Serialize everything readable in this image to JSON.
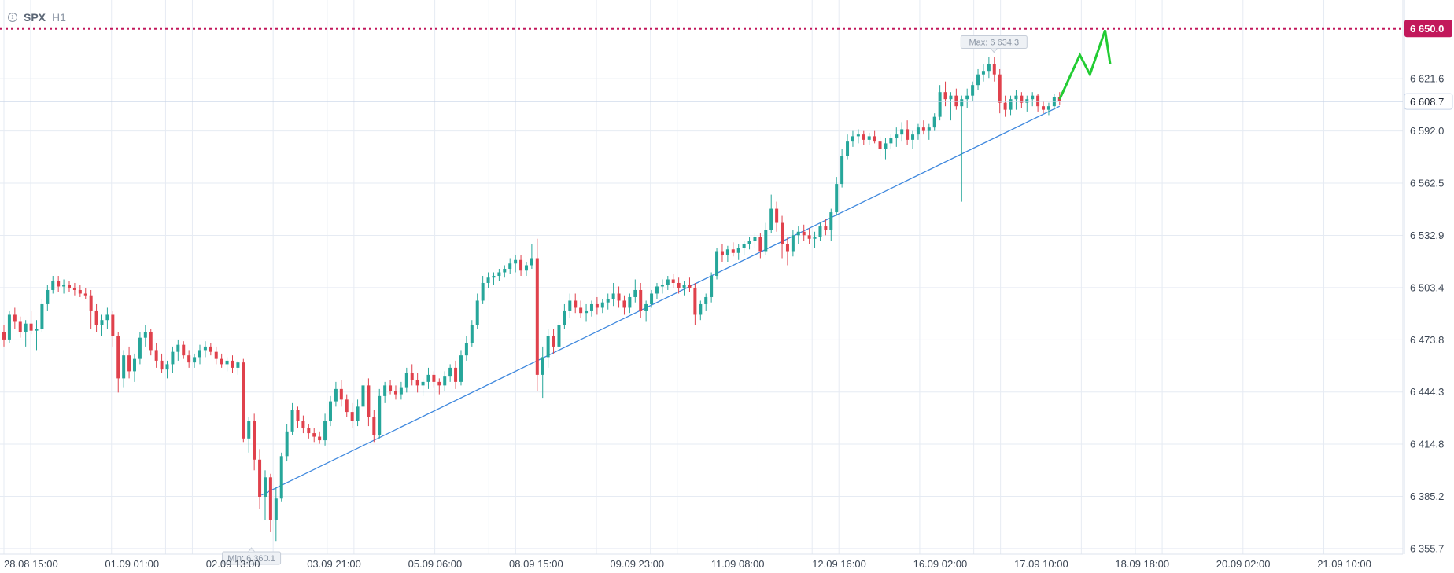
{
  "header": {
    "info_icon": "info-icon",
    "symbol": "SPX",
    "timeframe": "H1"
  },
  "colors": {
    "up": "#26a69a",
    "down": "#e0414c",
    "grid": "#e6ebf3",
    "resistance": "#c2185b",
    "trendline": "#3f88de",
    "forecast": "#22cc33",
    "current_line": "#c8d4e6"
  },
  "chart_data": {
    "type": "candlestick",
    "symbol": "SPX",
    "timeframe": "H1",
    "y_ticks": [
      "6 621.6",
      "6 592.0",
      "6 562.5",
      "6 532.9",
      "6 503.4",
      "6 473.8",
      "6 444.3",
      "6 414.8",
      "6 385.2",
      "6 355.7"
    ],
    "y_tick_values": [
      6621.6,
      6592.0,
      6562.5,
      6532.9,
      6503.4,
      6473.8,
      6444.3,
      6414.8,
      6385.2,
      6355.7
    ],
    "ylim": [
      6351.2,
      6651.0
    ],
    "x_ticks": [
      "28.08 15:00",
      "01.09 01:00",
      "02.09 13:00",
      "03.09 21:00",
      "05.09 06:00",
      "08.09 15:00",
      "09.09 23:00",
      "11.09 08:00",
      "12.09 16:00",
      "16.09 02:00",
      "17.09 10:00",
      "18.09 18:00",
      "20.09 02:00",
      "21.09 10:00"
    ],
    "x_range_hours": [
      0,
      282
    ],
    "resistance": {
      "value": 6650.0,
      "label": "6 650.0"
    },
    "current": {
      "value": 6608.7,
      "label": "6 608.7"
    },
    "max_label": "Max: 6 634.3",
    "min_label": "Min: 6 360.1",
    "max_point": {
      "hour": 196,
      "value": 6634.3
    },
    "min_point": {
      "hour": 49,
      "value": 6360.1
    },
    "trendline": [
      {
        "hour": 51,
        "value": 6386.0
      },
      {
        "hour": 209,
        "value": 6606.0
      }
    ],
    "forecast_path": [
      {
        "hour": 209,
        "value": 6610.0
      },
      {
        "hour": 213,
        "value": 6635.0
      },
      {
        "hour": 215,
        "value": 6624.0
      },
      {
        "hour": 218,
        "value": 6649.0
      },
      {
        "hour": 219,
        "value": 6630.0
      }
    ],
    "ohlc": [
      [
        6478,
        6482,
        6470,
        6474
      ],
      [
        6474,
        6490,
        6472,
        6488
      ],
      [
        6488,
        6492,
        6480,
        6484
      ],
      [
        6484,
        6487,
        6475,
        6478
      ],
      [
        6478,
        6485,
        6470,
        6483
      ],
      [
        6483,
        6490,
        6477,
        6479
      ],
      [
        6479,
        6485,
        6468,
        6480
      ],
      [
        6480,
        6497,
        6478,
        6494
      ],
      [
        6494,
        6505,
        6490,
        6502
      ],
      [
        6502,
        6510,
        6500,
        6507
      ],
      [
        6507,
        6510,
        6501,
        6504
      ],
      [
        6504,
        6508,
        6500,
        6505
      ],
      [
        6505,
        6507,
        6501,
        6503
      ],
      [
        6503,
        6506,
        6499,
        6502
      ],
      [
        6502,
        6505,
        6498,
        6500
      ],
      [
        6500,
        6503,
        6497,
        6499
      ],
      [
        6499,
        6502,
        6480,
        6490
      ],
      [
        6490,
        6494,
        6478,
        6482
      ],
      [
        6482,
        6488,
        6476,
        6485
      ],
      [
        6485,
        6492,
        6480,
        6488
      ],
      [
        6488,
        6490,
        6470,
        6476
      ],
      [
        6476,
        6478,
        6444,
        6452
      ],
      [
        6452,
        6468,
        6447,
        6465
      ],
      [
        6465,
        6470,
        6452,
        6456
      ],
      [
        6456,
        6466,
        6450,
        6463
      ],
      [
        6463,
        6478,
        6460,
        6475
      ],
      [
        6475,
        6482,
        6470,
        6478
      ],
      [
        6478,
        6480,
        6465,
        6468
      ],
      [
        6468,
        6472,
        6458,
        6462
      ],
      [
        6462,
        6466,
        6455,
        6457
      ],
      [
        6457,
        6462,
        6452,
        6460
      ],
      [
        6460,
        6470,
        6455,
        6467
      ],
      [
        6467,
        6474,
        6462,
        6471
      ],
      [
        6471,
        6473,
        6463,
        6465
      ],
      [
        6465,
        6468,
        6458,
        6461
      ],
      [
        6461,
        6466,
        6458,
        6464
      ],
      [
        6464,
        6471,
        6460,
        6468
      ],
      [
        6468,
        6473,
        6464,
        6470
      ],
      [
        6470,
        6472,
        6465,
        6467
      ],
      [
        6467,
        6470,
        6460,
        6463
      ],
      [
        6463,
        6466,
        6458,
        6460
      ],
      [
        6460,
        6464,
        6456,
        6462
      ],
      [
        6462,
        6465,
        6455,
        6458
      ],
      [
        6458,
        6462,
        6454,
        6461
      ],
      [
        6461,
        6463,
        6416,
        6418
      ],
      [
        6418,
        6430,
        6410,
        6428
      ],
      [
        6428,
        6432,
        6400,
        6406
      ],
      [
        6406,
        6412,
        6378,
        6385
      ],
      [
        6385,
        6400,
        6372,
        6396
      ],
      [
        6396,
        6398,
        6365,
        6372
      ],
      [
        6372,
        6390,
        6360,
        6384
      ],
      [
        6384,
        6410,
        6382,
        6408
      ],
      [
        6408,
        6426,
        6405,
        6422
      ],
      [
        6422,
        6438,
        6420,
        6434
      ],
      [
        6434,
        6436,
        6424,
        6428
      ],
      [
        6428,
        6431,
        6421,
        6424
      ],
      [
        6424,
        6426,
        6418,
        6421
      ],
      [
        6421,
        6424,
        6416,
        6419
      ],
      [
        6419,
        6422,
        6415,
        6417
      ],
      [
        6417,
        6432,
        6414,
        6428
      ],
      [
        6428,
        6442,
        6425,
        6439
      ],
      [
        6439,
        6450,
        6436,
        6446
      ],
      [
        6446,
        6451,
        6436,
        6440
      ],
      [
        6440,
        6443,
        6430,
        6433
      ],
      [
        6433,
        6438,
        6424,
        6428
      ],
      [
        6428,
        6440,
        6425,
        6436
      ],
      [
        6436,
        6452,
        6433,
        6448
      ],
      [
        6448,
        6452,
        6425,
        6430
      ],
      [
        6430,
        6434,
        6416,
        6420
      ],
      [
        6420,
        6446,
        6418,
        6442
      ],
      [
        6442,
        6450,
        6438,
        6448
      ],
      [
        6448,
        6451,
        6443,
        6445
      ],
      [
        6445,
        6448,
        6440,
        6443
      ],
      [
        6443,
        6450,
        6440,
        6447
      ],
      [
        6447,
        6458,
        6444,
        6455
      ],
      [
        6455,
        6460,
        6448,
        6451
      ],
      [
        6451,
        6455,
        6444,
        6448
      ],
      [
        6448,
        6452,
        6442,
        6450
      ],
      [
        6450,
        6458,
        6446,
        6454
      ],
      [
        6454,
        6456,
        6447,
        6450
      ],
      [
        6450,
        6452,
        6443,
        6448
      ],
      [
        6448,
        6456,
        6445,
        6453
      ],
      [
        6453,
        6460,
        6450,
        6458
      ],
      [
        6458,
        6462,
        6446,
        6450
      ],
      [
        6450,
        6468,
        6448,
        6465
      ],
      [
        6465,
        6476,
        6462,
        6472
      ],
      [
        6472,
        6485,
        6470,
        6482
      ],
      [
        6482,
        6500,
        6480,
        6496
      ],
      [
        6496,
        6510,
        6494,
        6506
      ],
      [
        6506,
        6512,
        6503,
        6509
      ],
      [
        6509,
        6512,
        6505,
        6510
      ],
      [
        6510,
        6514,
        6507,
        6512
      ],
      [
        6512,
        6516,
        6509,
        6514
      ],
      [
        6514,
        6520,
        6511,
        6517
      ],
      [
        6517,
        6522,
        6512,
        6519
      ],
      [
        6519,
        6522,
        6510,
        6513
      ],
      [
        6513,
        6518,
        6510,
        6516
      ],
      [
        6516,
        6528,
        6514,
        6520
      ],
      [
        6520,
        6531,
        6445,
        6454
      ],
      [
        6454,
        6470,
        6441,
        6464
      ],
      [
        6464,
        6480,
        6458,
        6476
      ],
      [
        6476,
        6480,
        6466,
        6470
      ],
      [
        6470,
        6484,
        6468,
        6482
      ],
      [
        6482,
        6494,
        6480,
        6490
      ],
      [
        6490,
        6500,
        6486,
        6496
      ],
      [
        6496,
        6500,
        6489,
        6492
      ],
      [
        6492,
        6496,
        6486,
        6489
      ],
      [
        6489,
        6494,
        6484,
        6490
      ],
      [
        6490,
        6496,
        6487,
        6494
      ],
      [
        6494,
        6498,
        6488,
        6492
      ],
      [
        6492,
        6497,
        6489,
        6495
      ],
      [
        6495,
        6500,
        6491,
        6497
      ],
      [
        6497,
        6506,
        6493,
        6500
      ],
      [
        6500,
        6504,
        6492,
        6496
      ],
      [
        6496,
        6499,
        6488,
        6492
      ],
      [
        6492,
        6500,
        6489,
        6498
      ],
      [
        6498,
        6508,
        6495,
        6502
      ],
      [
        6502,
        6506,
        6486,
        6490
      ],
      [
        6490,
        6496,
        6484,
        6494
      ],
      [
        6494,
        6502,
        6492,
        6500
      ],
      [
        6500,
        6506,
        6497,
        6504
      ],
      [
        6504,
        6508,
        6500,
        6505
      ],
      [
        6505,
        6510,
        6502,
        6508
      ],
      [
        6508,
        6511,
        6503,
        6506
      ],
      [
        6506,
        6509,
        6500,
        6503
      ],
      [
        6503,
        6507,
        6499,
        6505
      ],
      [
        6505,
        6509,
        6501,
        6503
      ],
      [
        6503,
        6506,
        6482,
        6488
      ],
      [
        6488,
        6496,
        6485,
        6494
      ],
      [
        6494,
        6500,
        6490,
        6498
      ],
      [
        6498,
        6512,
        6495,
        6510
      ],
      [
        6510,
        6526,
        6508,
        6524
      ],
      [
        6524,
        6528,
        6518,
        6522
      ],
      [
        6522,
        6527,
        6518,
        6525
      ],
      [
        6525,
        6529,
        6521,
        6523
      ],
      [
        6523,
        6528,
        6519,
        6526
      ],
      [
        6526,
        6530,
        6522,
        6528
      ],
      [
        6528,
        6532,
        6525,
        6530
      ],
      [
        6530,
        6534,
        6526,
        6532
      ],
      [
        6532,
        6534,
        6520,
        6524
      ],
      [
        6524,
        6540,
        6522,
        6536
      ],
      [
        6536,
        6556,
        6534,
        6548
      ],
      [
        6548,
        6552,
        6535,
        6540
      ],
      [
        6540,
        6544,
        6520,
        6528
      ],
      [
        6528,
        6532,
        6516,
        6524
      ],
      [
        6524,
        6536,
        6521,
        6533
      ],
      [
        6533,
        6538,
        6528,
        6535
      ],
      [
        6535,
        6539,
        6530,
        6533
      ],
      [
        6533,
        6537,
        6528,
        6531
      ],
      [
        6531,
        6535,
        6526,
        6532
      ],
      [
        6532,
        6540,
        6530,
        6538
      ],
      [
        6538,
        6542,
        6533,
        6536
      ],
      [
        6536,
        6548,
        6530,
        6546
      ],
      [
        6546,
        6566,
        6544,
        6562
      ],
      [
        6562,
        6582,
        6560,
        6578
      ],
      [
        6578,
        6590,
        6576,
        6586
      ],
      [
        6586,
        6592,
        6583,
        6589
      ],
      [
        6589,
        6593,
        6585,
        6590
      ],
      [
        6590,
        6592,
        6584,
        6587
      ],
      [
        6587,
        6591,
        6584,
        6589
      ],
      [
        6589,
        6592,
        6585,
        6586
      ],
      [
        6586,
        6589,
        6578,
        6582
      ],
      [
        6582,
        6588,
        6576,
        6585
      ],
      [
        6585,
        6590,
        6582,
        6588
      ],
      [
        6588,
        6594,
        6583,
        6590
      ],
      [
        6590,
        6597,
        6586,
        6593
      ],
      [
        6593,
        6598,
        6584,
        6587
      ],
      [
        6587,
        6592,
        6582,
        6590
      ],
      [
        6590,
        6596,
        6587,
        6594
      ],
      [
        6594,
        6598,
        6590,
        6592
      ],
      [
        6592,
        6596,
        6587,
        6594
      ],
      [
        6594,
        6602,
        6592,
        6600
      ],
      [
        6600,
        6618,
        6598,
        6614
      ],
      [
        6614,
        6620,
        6606,
        6610
      ],
      [
        6610,
        6614,
        6598,
        6612
      ],
      [
        6612,
        6616,
        6604,
        6606
      ],
      [
        6606,
        6612,
        6552,
        6610
      ],
      [
        6610,
        6616,
        6605,
        6612
      ],
      [
        6612,
        6620,
        6609,
        6618
      ],
      [
        6618,
        6627,
        6615,
        6624
      ],
      [
        6624,
        6630,
        6620,
        6626
      ],
      [
        6626,
        6634,
        6622,
        6630
      ],
      [
        6630,
        6634,
        6620,
        6624
      ],
      [
        6624,
        6627,
        6602,
        6608
      ],
      [
        6608,
        6612,
        6600,
        6604
      ],
      [
        6604,
        6612,
        6601,
        6610
      ],
      [
        6610,
        6615,
        6604,
        6612
      ],
      [
        6612,
        6614,
        6605,
        6608
      ],
      [
        6608,
        6612,
        6603,
        6610
      ],
      [
        6610,
        6614,
        6606,
        6612
      ],
      [
        6612,
        6613,
        6603,
        6606
      ],
      [
        6606,
        6609,
        6602,
        6604
      ],
      [
        6604,
        6608,
        6601,
        6606
      ],
      [
        6606,
        6613,
        6604,
        6611
      ],
      [
        6611,
        6614,
        6607,
        6609
      ]
    ]
  }
}
